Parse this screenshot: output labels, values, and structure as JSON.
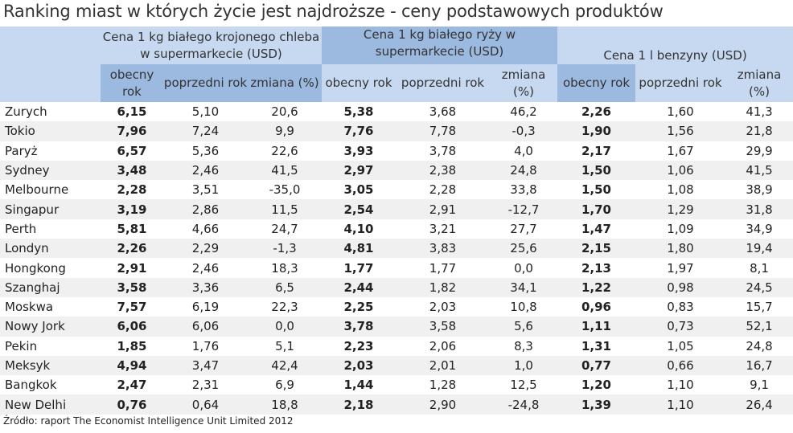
{
  "title": "Ranking  miast w których życie jest najdroższe - ceny podstawowych produktów",
  "groups": [
    "Cena 1 kg białego krojonego chleba w supermarkecie (USD)",
    "Cena 1 kg białego ryży w supermarkecie (USD)",
    "Cena 1 l benzyny (USD)"
  ],
  "sub": [
    "obecny rok",
    "poprzedni rok",
    "zmiana (%)"
  ],
  "rows": [
    [
      "Zurych",
      "6,15",
      "5,10",
      "20,6",
      "5,38",
      "3,68",
      "46,2",
      "2,26",
      "1,60",
      "41,3"
    ],
    [
      "Tokio",
      "7,96",
      "7,24",
      "9,9",
      "7,76",
      "7,78",
      "-0,3",
      "1,90",
      "1,56",
      "21,8"
    ],
    [
      "Paryż",
      "6,57",
      "5,36",
      "22,6",
      "3,93",
      "3,78",
      "4,0",
      "2,17",
      "1,67",
      "29,9"
    ],
    [
      "Sydney",
      "3,48",
      "2,46",
      "41,5",
      "2,97",
      "2,38",
      "24,8",
      "1,50",
      "1,06",
      "41,5"
    ],
    [
      "Melbourne",
      "2,28",
      "3,51",
      "-35,0",
      "3,05",
      "2,28",
      "33,8",
      "1,50",
      "1,08",
      "38,9"
    ],
    [
      "Singapur",
      "3,19",
      "2,86",
      "11,5",
      "2,54",
      "2,91",
      "-12,7",
      "1,70",
      "1,29",
      "31,8"
    ],
    [
      "Perth",
      "5,81",
      "4,66",
      "24,7",
      "4,10",
      "3,21",
      "27,7",
      "1,47",
      "1,09",
      "34,9"
    ],
    [
      "Londyn",
      "2,26",
      "2,29",
      "-1,3",
      "4,81",
      "3,83",
      "25,6",
      "2,15",
      "1,80",
      "19,4"
    ],
    [
      "Hongkong",
      "2,91",
      "2,46",
      "18,3",
      "1,77",
      "1,77",
      "0,0",
      "2,13",
      "1,97",
      "8,1"
    ],
    [
      "Szanghaj",
      "3,58",
      "3,36",
      "6,5",
      "2,44",
      "1,82",
      "34,1",
      "1,22",
      "0,98",
      "24,5"
    ],
    [
      "Moskwa",
      "7,57",
      "6,19",
      "22,3",
      "2,25",
      "2,03",
      "10,8",
      "0,96",
      "0,83",
      "15,7"
    ],
    [
      "Nowy Jork",
      "6,06",
      "6,06",
      "0,0",
      "3,78",
      "3,58",
      "5,6",
      "1,11",
      "0,73",
      "52,1"
    ],
    [
      "Pekin",
      "1,85",
      "1,76",
      "5,1",
      "2,23",
      "2,06",
      "8,3",
      "1,31",
      "1,05",
      "24,8"
    ],
    [
      "Meksyk",
      "4,94",
      "3,47",
      "42,4",
      "2,03",
      "2,01",
      "1,0",
      "0,77",
      "0,66",
      "16,7"
    ],
    [
      "Bangkok",
      "2,47",
      "2,31",
      "6,9",
      "1,44",
      "1,28",
      "12,5",
      "1,20",
      "1,10",
      "9,1"
    ],
    [
      "New Delhi",
      "0,76",
      "0,64",
      "18,8",
      "2,18",
      "2,90",
      "-24,8",
      "1,39",
      "1,10",
      "26,4"
    ]
  ],
  "source": "Źródło: raport The Economist Intelligence Unit Limited 2012"
}
